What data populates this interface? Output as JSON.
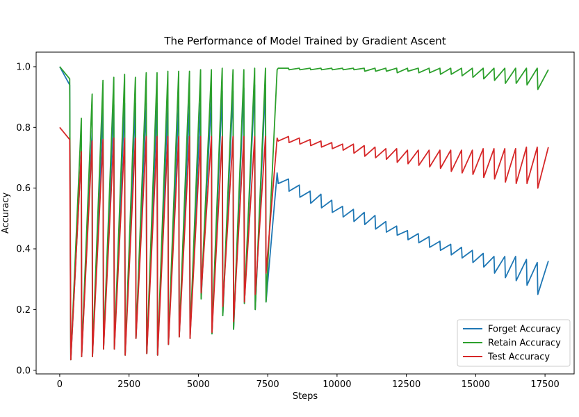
{
  "chart_data": {
    "type": "line",
    "title": "The Performance of Model Trained by Gradient Ascent",
    "xlabel": "Steps",
    "ylabel": "Accuracy",
    "xlim": [
      -850,
      18550
    ],
    "ylim": [
      -0.012,
      1.048
    ],
    "xticks": [
      0,
      2500,
      5000,
      7500,
      10000,
      12500,
      15000,
      17500
    ],
    "yticks": [
      0.0,
      0.2,
      0.4,
      0.6,
      0.8,
      1.0
    ],
    "xtick_labels": [
      "0",
      "2500",
      "5000",
      "7500",
      "10000",
      "12500",
      "15000",
      "17500"
    ],
    "ytick_labels": [
      "0.0",
      "0.2",
      "0.4",
      "0.6",
      "0.8",
      "1.0"
    ],
    "legend_position": "lower-right",
    "grid": false,
    "series": [
      {
        "name": "Forget Accuracy",
        "color": "#1f77b4",
        "x": [
          0,
          360,
          400,
          780,
          790,
          1170,
          1180,
          1560,
          1580,
          1950,
          1970,
          2340,
          2360,
          2730,
          2750,
          3120,
          3140,
          3510,
          3530,
          3900,
          3920,
          4290,
          4310,
          4680,
          4700,
          5080,
          5100,
          5470,
          5490,
          5860,
          5880,
          6250,
          6270,
          6640,
          6660,
          7030,
          7050,
          7420,
          7440,
          7840,
          7880,
          8250,
          8270,
          8640,
          8660,
          9030,
          9050,
          9420,
          9440,
          9810,
          9830,
          10200,
          10220,
          10590,
          10610,
          10980,
          11000,
          11370,
          11390,
          11760,
          11780,
          12150,
          12170,
          12540,
          12560,
          12930,
          12950,
          13320,
          13340,
          13710,
          13730,
          14100,
          14120,
          14490,
          14510,
          14880,
          14900,
          15270,
          15290,
          15660,
          15680,
          16050,
          16070,
          16440,
          16460,
          16830,
          16850,
          17220,
          17240,
          17620
        ],
        "values": [
          1.0,
          0.94,
          0.035,
          0.72,
          0.045,
          0.79,
          0.045,
          0.86,
          0.07,
          0.875,
          0.07,
          0.88,
          0.05,
          0.88,
          0.105,
          0.88,
          0.055,
          0.88,
          0.05,
          0.88,
          0.085,
          0.88,
          0.11,
          0.88,
          0.105,
          0.88,
          0.235,
          0.9,
          0.12,
          0.92,
          0.18,
          0.92,
          0.135,
          0.93,
          0.22,
          0.94,
          0.2,
          0.94,
          0.225,
          0.65,
          0.615,
          0.63,
          0.59,
          0.61,
          0.57,
          0.59,
          0.55,
          0.58,
          0.535,
          0.56,
          0.52,
          0.54,
          0.505,
          0.53,
          0.49,
          0.52,
          0.48,
          0.51,
          0.465,
          0.49,
          0.455,
          0.475,
          0.445,
          0.46,
          0.43,
          0.45,
          0.42,
          0.44,
          0.405,
          0.425,
          0.395,
          0.415,
          0.38,
          0.405,
          0.37,
          0.395,
          0.355,
          0.385,
          0.34,
          0.375,
          0.32,
          0.375,
          0.305,
          0.375,
          0.295,
          0.365,
          0.28,
          0.355,
          0.25,
          0.36
        ]
      },
      {
        "name": "Retain Accuracy",
        "color": "#2ca02c",
        "x": [
          0,
          360,
          400,
          780,
          790,
          1170,
          1180,
          1560,
          1580,
          1950,
          1970,
          2340,
          2360,
          2730,
          2750,
          3120,
          3140,
          3510,
          3530,
          3900,
          3920,
          4290,
          4310,
          4680,
          4700,
          5080,
          5100,
          5470,
          5490,
          5860,
          5880,
          6250,
          6270,
          6640,
          6660,
          7030,
          7050,
          7420,
          7440,
          7840,
          7880,
          8250,
          8270,
          8640,
          8660,
          9030,
          9050,
          9420,
          9440,
          9810,
          9830,
          10200,
          10220,
          10590,
          10610,
          10980,
          11000,
          11370,
          11390,
          11760,
          11780,
          12150,
          12170,
          12540,
          12560,
          12930,
          12950,
          13320,
          13340,
          13710,
          13730,
          14100,
          14120,
          14490,
          14510,
          14880,
          14900,
          15270,
          15290,
          15660,
          15680,
          16050,
          16070,
          16440,
          16460,
          16830,
          16850,
          17220,
          17240,
          17620
        ],
        "values": [
          1.0,
          0.96,
          0.035,
          0.83,
          0.045,
          0.91,
          0.045,
          0.955,
          0.07,
          0.965,
          0.07,
          0.975,
          0.05,
          0.965,
          0.105,
          0.98,
          0.055,
          0.98,
          0.05,
          0.985,
          0.085,
          0.985,
          0.11,
          0.985,
          0.105,
          0.99,
          0.235,
          0.99,
          0.12,
          0.995,
          0.18,
          0.99,
          0.135,
          0.99,
          0.22,
          0.995,
          0.2,
          0.995,
          0.225,
          0.99,
          0.995,
          0.995,
          0.99,
          0.995,
          0.99,
          0.995,
          0.99,
          0.995,
          0.99,
          0.995,
          0.99,
          0.995,
          0.99,
          0.995,
          0.99,
          0.995,
          0.985,
          0.995,
          0.985,
          0.995,
          0.985,
          0.995,
          0.98,
          0.995,
          0.985,
          0.995,
          0.98,
          0.995,
          0.98,
          0.995,
          0.975,
          0.995,
          0.975,
          0.995,
          0.97,
          0.995,
          0.965,
          0.995,
          0.96,
          0.995,
          0.955,
          0.995,
          0.945,
          0.995,
          0.945,
          0.995,
          0.94,
          0.995,
          0.925,
          0.99
        ]
      },
      {
        "name": "Test Accuracy",
        "color": "#d62728",
        "x": [
          0,
          360,
          400,
          780,
          790,
          1170,
          1180,
          1560,
          1580,
          1950,
          1970,
          2340,
          2360,
          2730,
          2750,
          3120,
          3140,
          3510,
          3530,
          3900,
          3920,
          4290,
          4310,
          4680,
          4700,
          5080,
          5100,
          5470,
          5490,
          5860,
          5880,
          6250,
          6270,
          6640,
          6660,
          7030,
          7050,
          7420,
          7440,
          7840,
          7880,
          8250,
          8270,
          8640,
          8660,
          9030,
          9050,
          9420,
          9440,
          9810,
          9830,
          10200,
          10220,
          10590,
          10610,
          10980,
          11000,
          11370,
          11390,
          11760,
          11780,
          12150,
          12170,
          12540,
          12560,
          12930,
          12950,
          13320,
          13340,
          13710,
          13730,
          14100,
          14120,
          14490,
          14510,
          14880,
          14900,
          15270,
          15290,
          15660,
          15680,
          16050,
          16070,
          16440,
          16460,
          16830,
          16850,
          17220,
          17240,
          17620
        ],
        "values": [
          0.8,
          0.76,
          0.035,
          0.72,
          0.045,
          0.755,
          0.045,
          0.76,
          0.07,
          0.765,
          0.07,
          0.765,
          0.05,
          0.765,
          0.105,
          0.77,
          0.055,
          0.77,
          0.05,
          0.77,
          0.085,
          0.77,
          0.11,
          0.77,
          0.105,
          0.77,
          0.255,
          0.77,
          0.125,
          0.77,
          0.21,
          0.77,
          0.16,
          0.77,
          0.225,
          0.77,
          0.25,
          0.77,
          0.32,
          0.765,
          0.755,
          0.77,
          0.75,
          0.765,
          0.745,
          0.76,
          0.74,
          0.755,
          0.735,
          0.75,
          0.73,
          0.745,
          0.725,
          0.745,
          0.715,
          0.74,
          0.705,
          0.735,
          0.7,
          0.73,
          0.695,
          0.73,
          0.685,
          0.725,
          0.68,
          0.725,
          0.675,
          0.725,
          0.67,
          0.725,
          0.665,
          0.725,
          0.655,
          0.725,
          0.65,
          0.725,
          0.645,
          0.73,
          0.635,
          0.73,
          0.63,
          0.73,
          0.62,
          0.73,
          0.615,
          0.735,
          0.615,
          0.735,
          0.6,
          0.735
        ]
      }
    ]
  }
}
